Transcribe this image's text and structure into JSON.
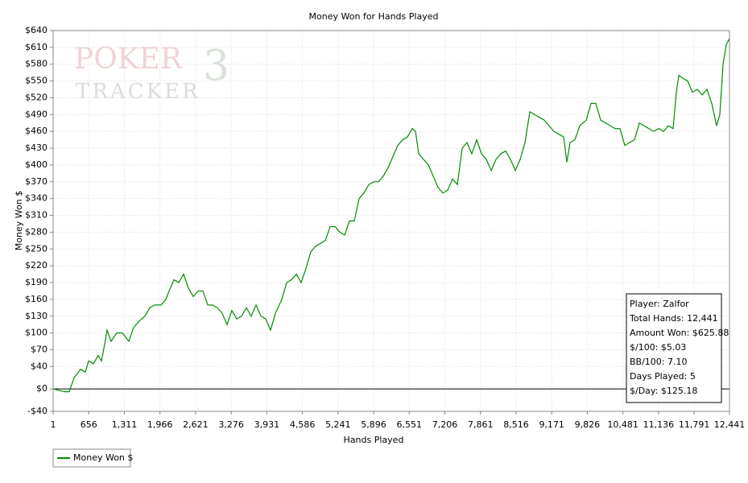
{
  "chart_data": {
    "type": "line",
    "title": "Money Won for Hands Played",
    "xlabel": "Hands Played",
    "ylabel": "Money Won $",
    "watermark": [
      "POKER",
      "3",
      "TRACKER"
    ],
    "info_box": [
      "Player: Zalfor",
      "Total Hands: 12,441",
      "Amount Won: $625.88",
      "$/100: $5.03",
      "BB/100: 7.10",
      "Days Played: 5",
      "$/Day: $125.18"
    ],
    "legend": "bottom-left",
    "grid": true,
    "xlim": [
      1,
      12441
    ],
    "ylim": [
      -40,
      640
    ],
    "xticks": [
      1,
      656,
      {
        "value": 1311,
        "label": "1,311"
      },
      {
        "value": 1966,
        "label": "1,966"
      },
      {
        "value": 2621,
        "label": "2,621"
      },
      {
        "value": 3276,
        "label": "3,276"
      },
      {
        "value": 3931,
        "label": "3,931"
      },
      {
        "value": 4586,
        "label": "4,586"
      },
      {
        "value": 5241,
        "label": "5,241"
      },
      {
        "value": 5896,
        "label": "5,896"
      },
      {
        "value": 6551,
        "label": "6,551"
      },
      {
        "value": 7206,
        "label": "7,206"
      },
      {
        "value": 7861,
        "label": "7,861"
      },
      {
        "value": 8516,
        "label": "8,516"
      },
      {
        "value": 9171,
        "label": "9,171"
      },
      {
        "value": 9826,
        "label": "9,826"
      },
      {
        "value": 10481,
        "label": "10,481"
      },
      {
        "value": 11136,
        "label": "11,136"
      },
      {
        "value": 11791,
        "label": "11,791"
      },
      {
        "value": 12441,
        "label": "12,441"
      }
    ],
    "yticks": [
      {
        "value": -40,
        "label": "-$40"
      },
      {
        "value": 0,
        "label": "$0"
      },
      {
        "value": 40,
        "label": "$40"
      },
      {
        "value": 70,
        "label": "$70"
      },
      {
        "value": 100,
        "label": "$100"
      },
      {
        "value": 130,
        "label": "$130"
      },
      {
        "value": 160,
        "label": "$160"
      },
      {
        "value": 190,
        "label": "$190"
      },
      {
        "value": 220,
        "label": "$220"
      },
      {
        "value": 250,
        "label": "$250"
      },
      {
        "value": 280,
        "label": "$280"
      },
      {
        "value": 310,
        "label": "$310"
      },
      {
        "value": 340,
        "label": "$340"
      },
      {
        "value": 370,
        "label": "$370"
      },
      {
        "value": 400,
        "label": "$400"
      },
      {
        "value": 430,
        "label": "$430"
      },
      {
        "value": 460,
        "label": "$460"
      },
      {
        "value": 490,
        "label": "$490"
      },
      {
        "value": 520,
        "label": "$520"
      },
      {
        "value": 550,
        "label": "$550"
      },
      {
        "value": 580,
        "label": "$580"
      },
      {
        "value": 610,
        "label": "$610"
      },
      {
        "value": 640,
        "label": "$640"
      }
    ],
    "x": [
      1,
      90,
      208,
      297,
      386,
      505,
      593,
      653,
      742,
      830,
      890,
      949,
      993,
      1067,
      1171,
      1275,
      1393,
      1482,
      1571,
      1689,
      1778,
      1867,
      1986,
      2074,
      2134,
      2223,
      2311,
      2400,
      2489,
      2578,
      2667,
      2756,
      2845,
      2933,
      3022,
      3111,
      3200,
      3289,
      3378,
      3467,
      3555,
      3644,
      3733,
      3822,
      3911,
      4000,
      4089,
      4207,
      4296,
      4385,
      4474,
      4562,
      4651,
      4740,
      4829,
      4918,
      5007,
      5096,
      5185,
      5273,
      5362,
      5451,
      5540,
      5629,
      5718,
      5807,
      5895,
      5984,
      6073,
      6162,
      6251,
      6340,
      6429,
      6517,
      6606,
      6666,
      6725,
      6814,
      6903,
      6992,
      7080,
      7169,
      7258,
      7347,
      7436,
      7525,
      7613,
      7702,
      7791,
      7880,
      7969,
      8058,
      8147,
      8235,
      8324,
      8413,
      8502,
      8591,
      8680,
      8769,
      8857,
      8946,
      9035,
      9124,
      9213,
      9302,
      9391,
      9450,
      9509,
      9598,
      9687,
      9805,
      9894,
      9983,
      10072,
      10161,
      10250,
      10338,
      10427,
      10516,
      10605,
      10694,
      10783,
      10871,
      10960,
      11049,
      11138,
      11227,
      11316,
      11404,
      11464,
      11508,
      11582,
      11671,
      11760,
      11849,
      11938,
      12027,
      12115,
      12204,
      12263,
      12323,
      12382,
      12441
    ],
    "series": [
      {
        "name": "Money Won $",
        "color": "#008c00",
        "values": [
          0,
          -2,
          -5,
          -5,
          20,
          35,
          30,
          50,
          45,
          60,
          50,
          80,
          105,
          85,
          100,
          100,
          85,
          110,
          120,
          130,
          145,
          150,
          150,
          160,
          175,
          195,
          190,
          205,
          180,
          165,
          175,
          175,
          150,
          150,
          145,
          135,
          115,
          140,
          125,
          130,
          145,
          130,
          150,
          130,
          125,
          105,
          135,
          160,
          190,
          195,
          205,
          190,
          215,
          245,
          255,
          260,
          265,
          290,
          290,
          280,
          275,
          300,
          300,
          340,
          350,
          365,
          370,
          370,
          380,
          395,
          415,
          435,
          445,
          450,
          465,
          460,
          420,
          410,
          400,
          380,
          360,
          350,
          355,
          375,
          365,
          430,
          440,
          420,
          445,
          420,
          410,
          390,
          410,
          420,
          425,
          410,
          390,
          410,
          440,
          495,
          490,
          485,
          480,
          470,
          460,
          455,
          450,
          405,
          440,
          445,
          470,
          480,
          510,
          510,
          480,
          475,
          470,
          465,
          465,
          435,
          440,
          445,
          475,
          470,
          465,
          460,
          465,
          460,
          470,
          465,
          530,
          560,
          555,
          550,
          530,
          535,
          525,
          535,
          510,
          470,
          490,
          580,
          615,
          625.88
        ]
      }
    ]
  }
}
